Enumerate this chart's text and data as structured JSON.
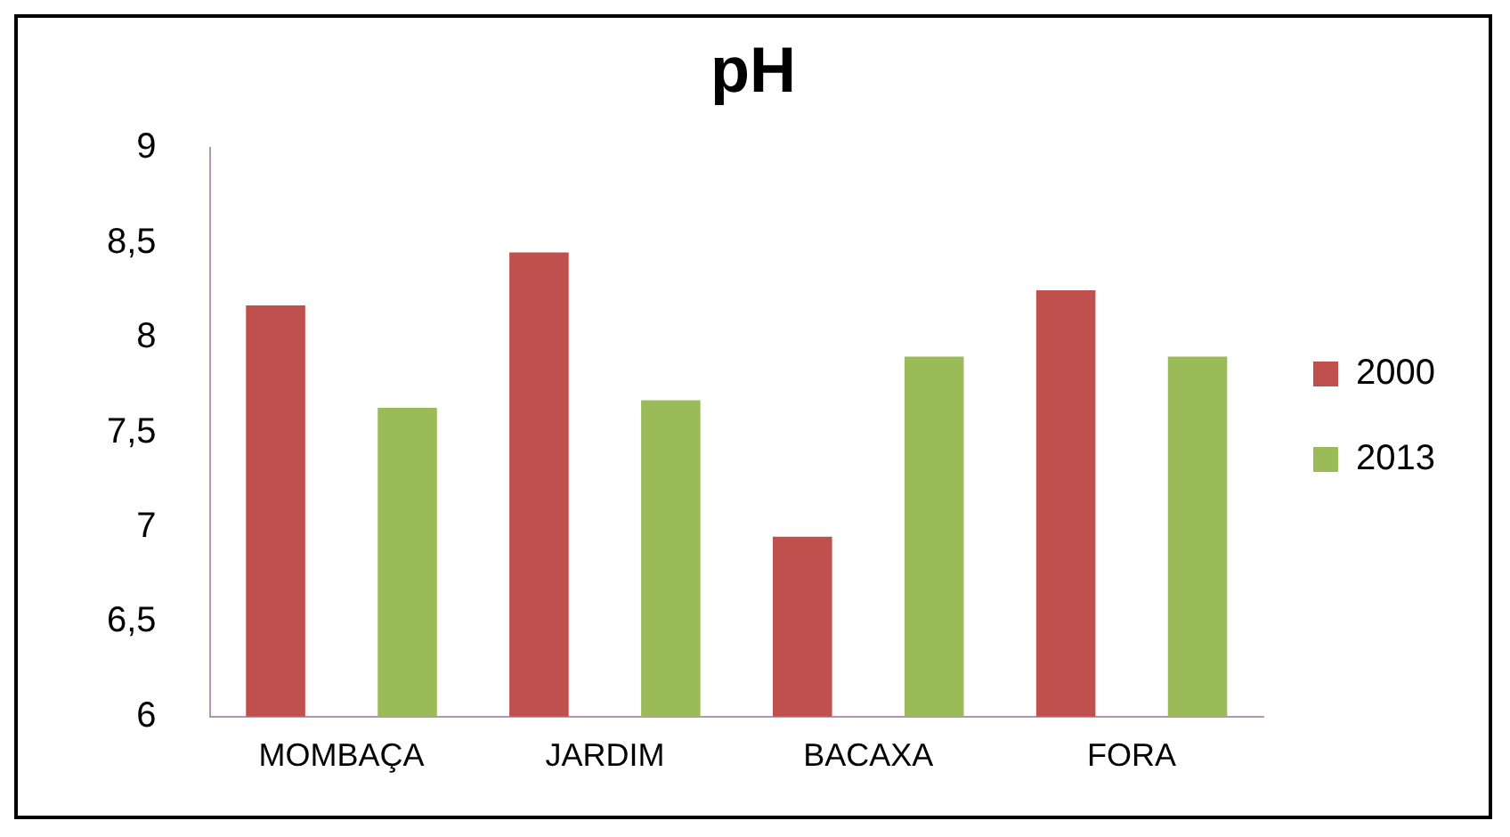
{
  "chart_data": {
    "type": "bar",
    "title": "pH",
    "categories": [
      "MOMBAÇA",
      "JARDIM",
      "BACAXA",
      "FORA"
    ],
    "series": [
      {
        "name": "2000",
        "color": "#c0504d",
        "values": [
          8.17,
          8.45,
          6.95,
          8.25
        ]
      },
      {
        "name": "2013",
        "color": "#9bbb59",
        "values": [
          7.63,
          7.67,
          7.9,
          7.9
        ]
      }
    ],
    "ylim": [
      6,
      9
    ],
    "yticks": [
      "6",
      {
        "value": 6.5,
        "label": "6,5"
      },
      7,
      {
        "value": 7.5,
        "label": "7,5"
      },
      8,
      {
        "value": 8.5,
        "label": "8,5"
      },
      9
    ],
    "grid": false,
    "legend": "right"
  }
}
